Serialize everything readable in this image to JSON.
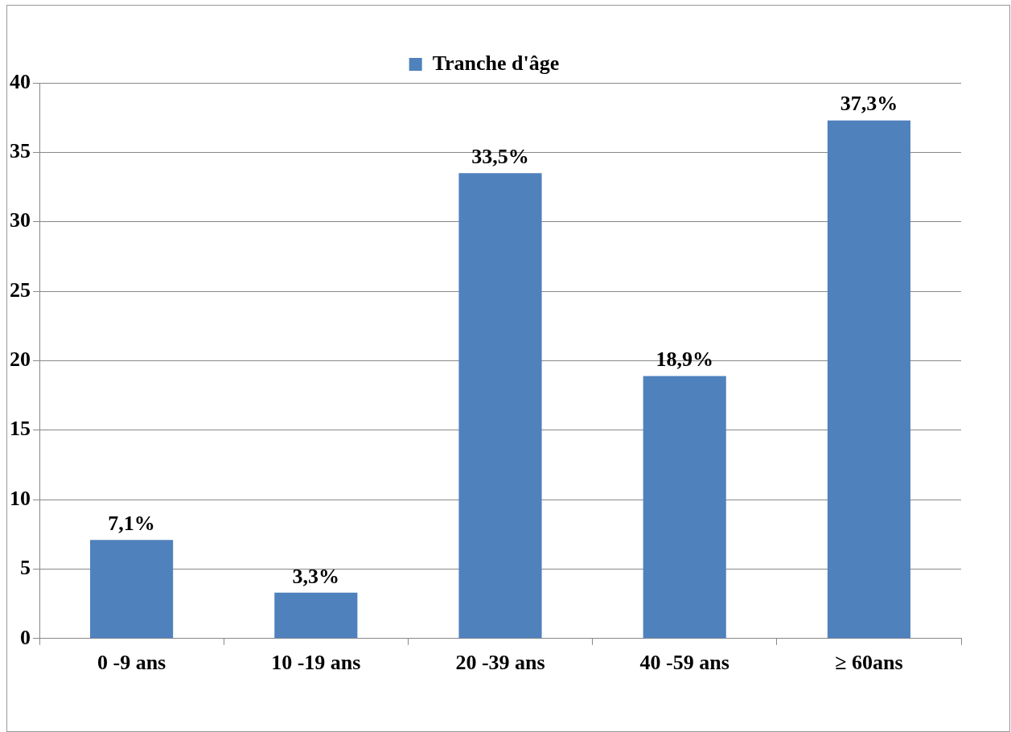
{
  "chart_data": {
    "type": "bar",
    "categories": [
      "0 -9 ans",
      "10 -19 ans",
      "20 -39 ans",
      "40 -59 ans",
      "≥ 60ans"
    ],
    "series": [
      {
        "name": "Tranche d'âge",
        "color": "#4f81bd",
        "values": [
          7.1,
          3.3,
          33.5,
          18.9,
          37.3
        ],
        "value_labels": [
          "7,1%",
          "3,3%",
          "33,5%",
          "18,9%",
          "37,3%"
        ]
      }
    ],
    "ylim": [
      0,
      40
    ],
    "yticks": [
      0,
      5,
      10,
      15,
      20,
      25,
      30,
      35,
      40
    ],
    "grid": "y",
    "legend": "top"
  }
}
